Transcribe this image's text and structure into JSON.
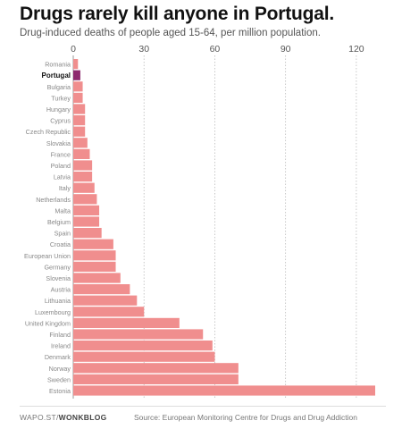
{
  "footer": {
    "source_prefix": "WAPO.ST/",
    "source_brand": "WONKBLOG",
    "source": "Source: European Monitoring Centre for Drugs and Drug Addiction"
  },
  "colors": {
    "bar": "#f08e8e",
    "highlight": "#8e2a6e",
    "grid": "#bbbbbb",
    "axis": "#999999"
  },
  "chart_data": {
    "type": "bar",
    "orientation": "horizontal",
    "title": "Drugs rarely kill anyone in Portugal.",
    "subtitle": "Drug-induced deaths of people aged 15-64, per million population.",
    "xlim": [
      0,
      128
    ],
    "ticks": [
      0,
      30,
      60,
      90,
      120
    ],
    "grid": true,
    "highlight": "Portugal",
    "categories": [
      "Romania",
      "Portugal",
      "Bulgaria",
      "Turkey",
      "Hungary",
      "Cyprus",
      "Czech Republic",
      "Slovakia",
      "France",
      "Poland",
      "Latvia",
      "Italy",
      "Netherlands",
      "Malta",
      "Belgium",
      "Spain",
      "Croatia",
      "European Union",
      "Germany",
      "Slovenia",
      "Austria",
      "Lithuania",
      "Luxembourg",
      "United Kingdom",
      "Finland",
      "Ireland",
      "Denmark",
      "Norway",
      "Sweden",
      "Estonia"
    ],
    "values": [
      2,
      3,
      4,
      4,
      5,
      5,
      5,
      6,
      7,
      8,
      8,
      9,
      10,
      11,
      11,
      12,
      17,
      18,
      18,
      20,
      24,
      27,
      30,
      45,
      55,
      59,
      60,
      70,
      70,
      128
    ]
  }
}
